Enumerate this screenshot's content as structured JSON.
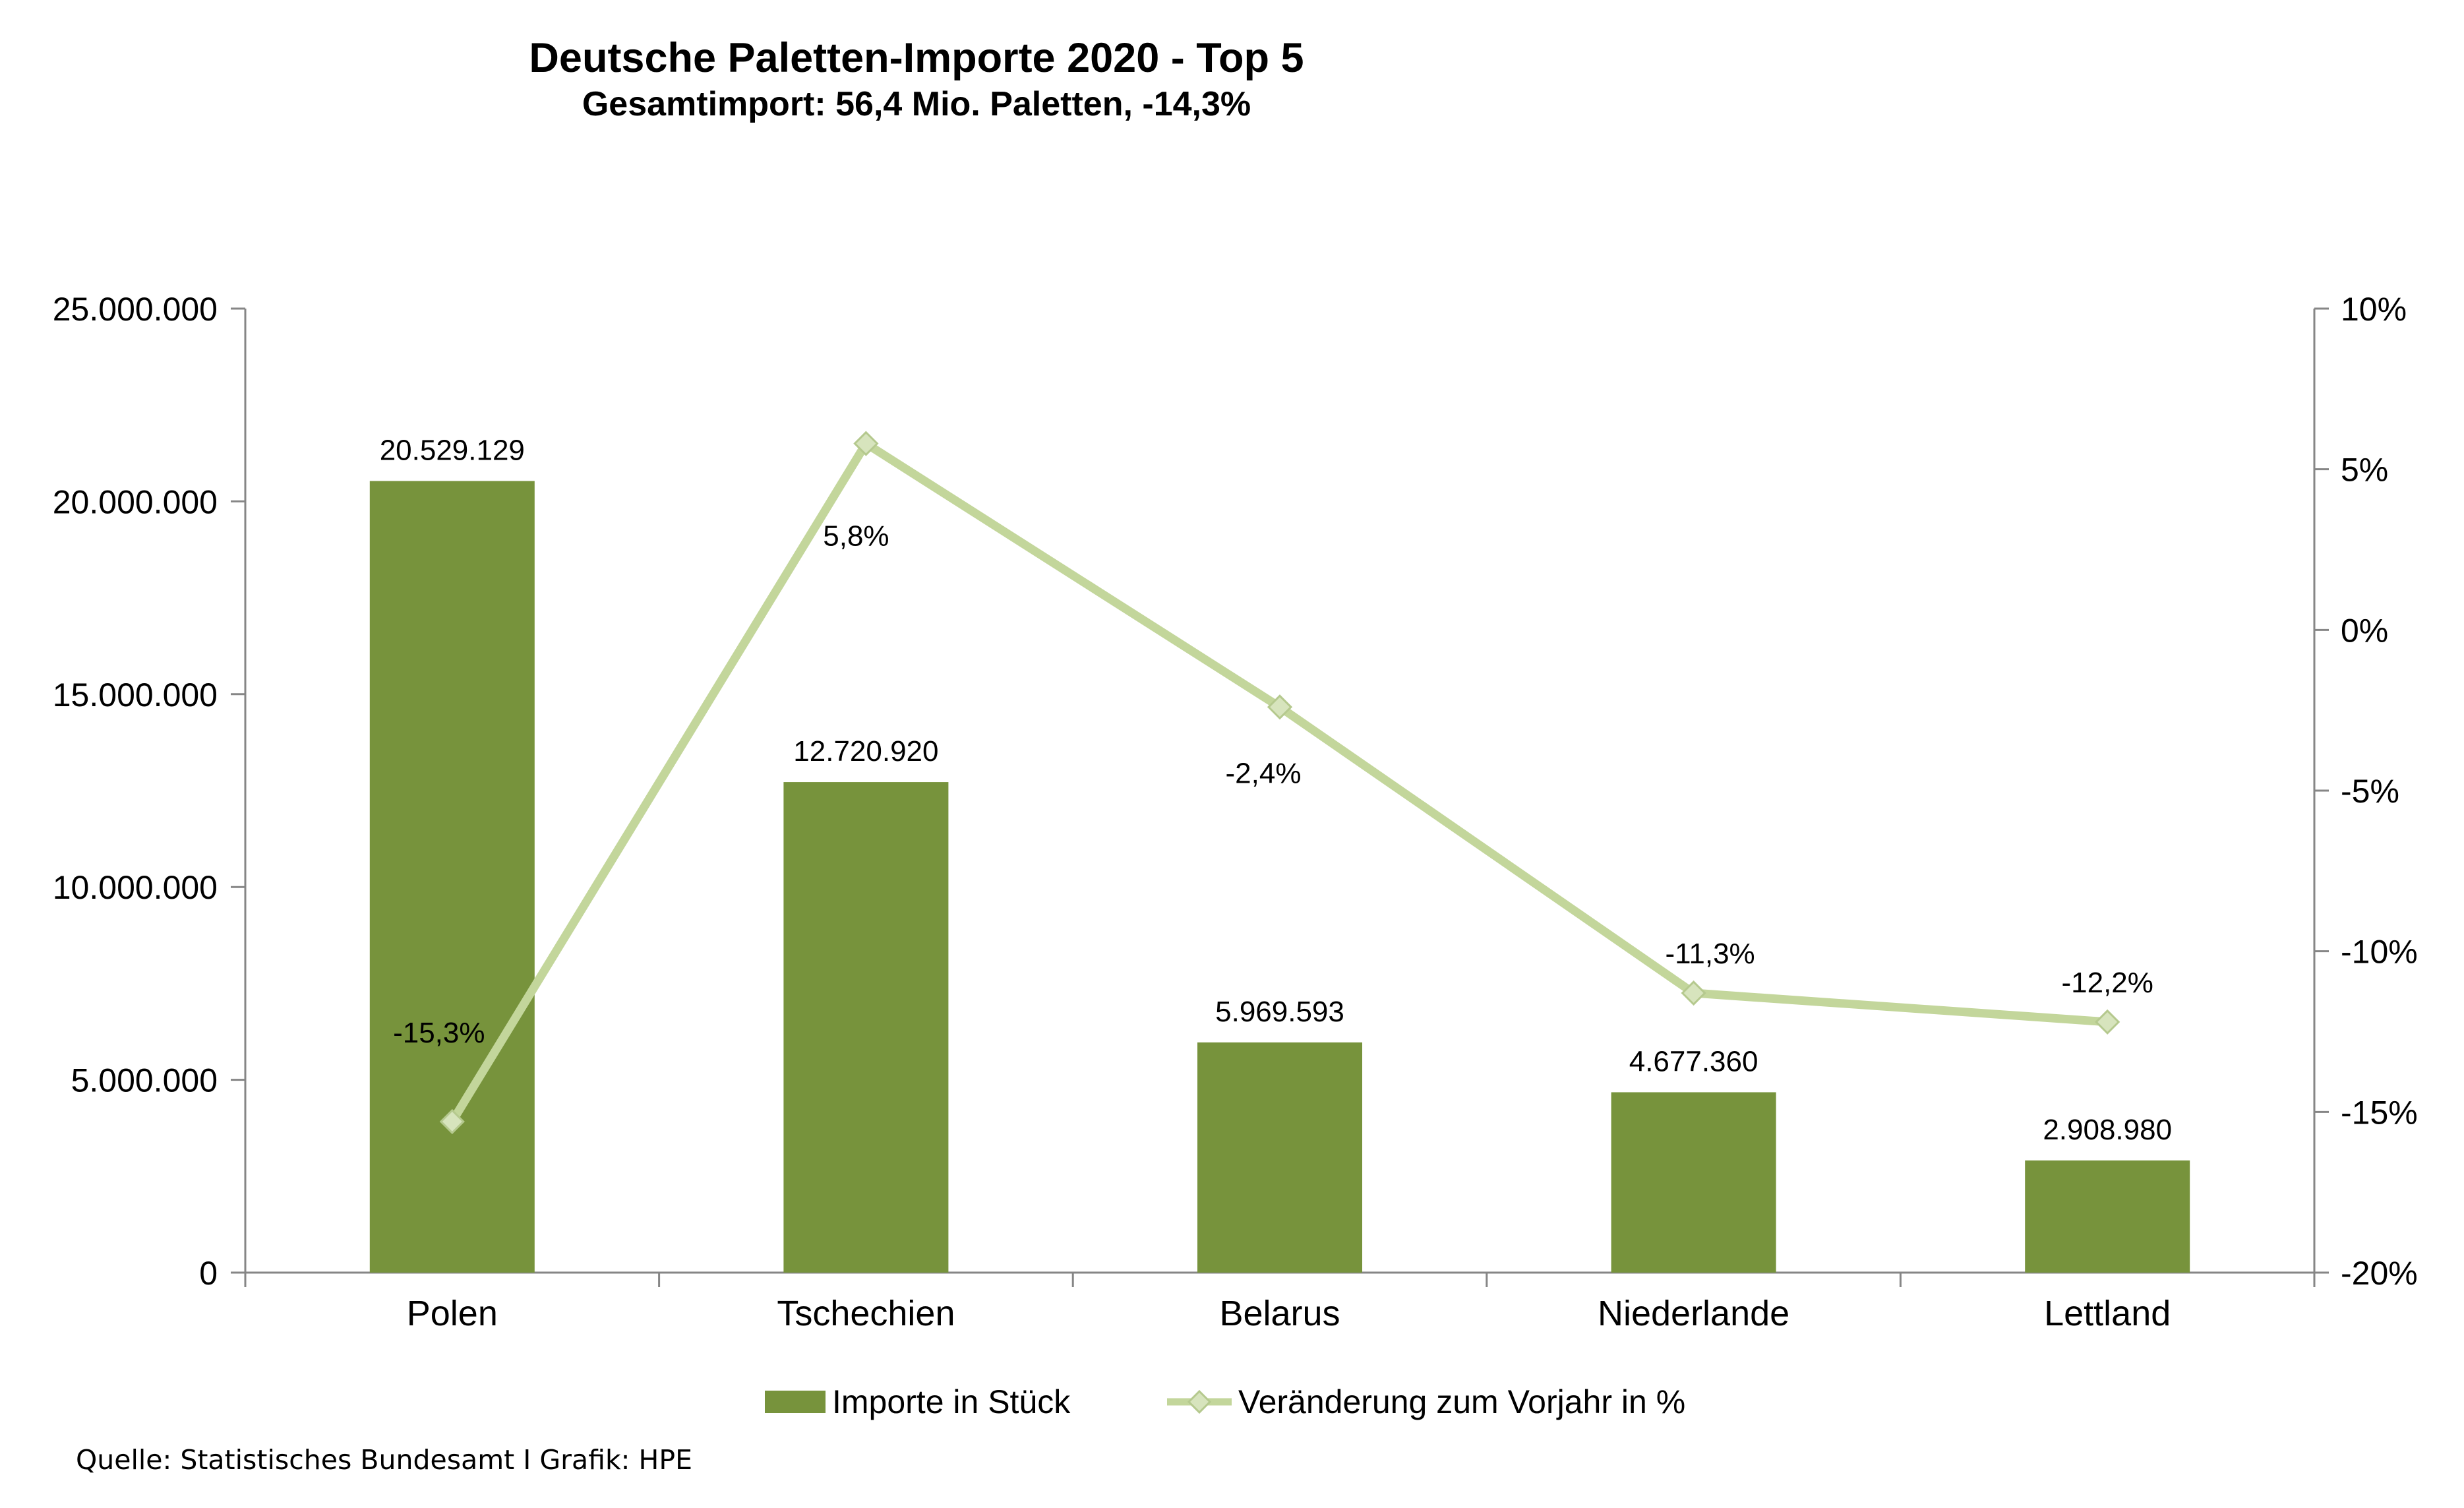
{
  "title": "Deutsche Paletten-Importe 2020 - Top 5",
  "subtitle": "Gesamtimport: 56,4 Mio. Paletten,  -14,3%",
  "source": "Quelle: Statistisches Bundesamt I Grafik: HPE",
  "colors": {
    "bar": "#77933C",
    "line": "#C3D69B",
    "marker": "#D7E4BD",
    "axis": "#868686"
  },
  "chart_data": {
    "type": "bar",
    "categories": [
      "Polen",
      "Tschechien",
      "Belarus",
      "Niederlande",
      "Lettland"
    ],
    "series": [
      {
        "name": "Importe in Stück",
        "type": "bar",
        "axis": "left",
        "values": [
          20529129,
          12720920,
          5969593,
          4677360,
          2908980
        ],
        "labels": [
          "20.529.129",
          "12.720.920",
          "5.969.593",
          "4.677.360",
          "2.908.980"
        ]
      },
      {
        "name": "Veränderung zum Vorjahr in %",
        "type": "line",
        "axis": "right",
        "values": [
          -15.3,
          5.8,
          -2.4,
          -11.3,
          -12.2
        ],
        "labels": [
          "-15,3%",
          "5,8%",
          "-2,4%",
          "-11,3%",
          "-12,2%"
        ]
      }
    ],
    "y_left": {
      "range": [
        0,
        25000000
      ],
      "ticks": [
        "0",
        "5.000.000",
        "10.000.000",
        "15.000.000",
        "20.000.000",
        "25.000.000"
      ]
    },
    "y_right": {
      "range": [
        -20,
        10
      ],
      "ticks": [
        "-20%",
        "-15%",
        "-10%",
        "-5%",
        "0%",
        "5%",
        "10%"
      ]
    },
    "grid": false,
    "legend_position": "bottom"
  }
}
